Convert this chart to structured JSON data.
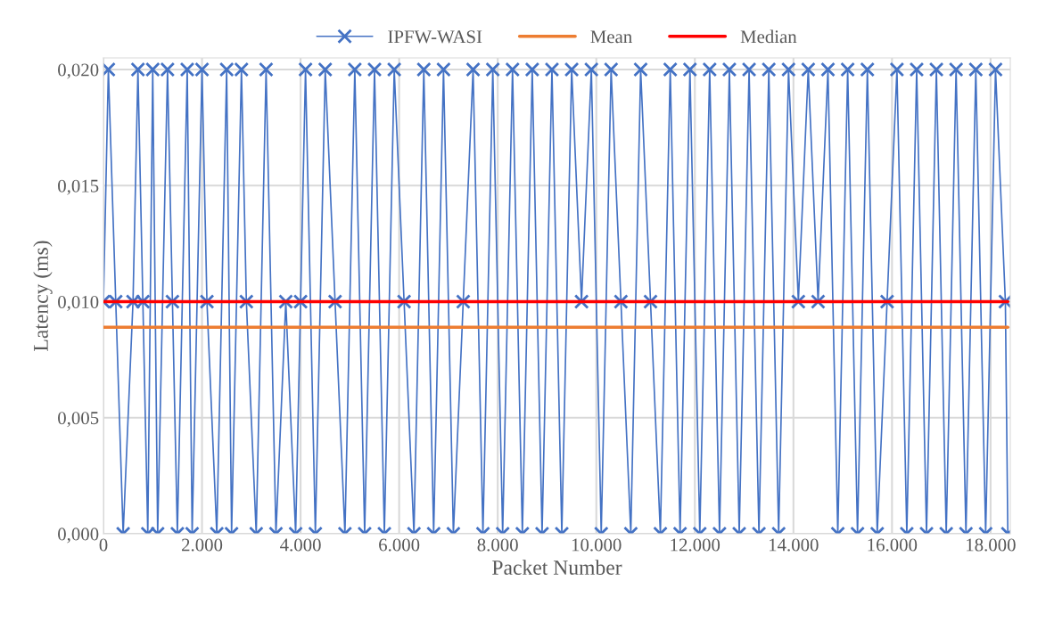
{
  "chart_data": {
    "type": "line",
    "xlabel": "Packet Number",
    "ylabel": "Latency (ms)",
    "xlim": [
      0,
      18400
    ],
    "ylim": [
      0,
      0.0205
    ],
    "xticks": [
      {
        "value": 0,
        "label": "0"
      },
      {
        "value": 2000,
        "label": "2.000"
      },
      {
        "value": 4000,
        "label": "4.000"
      },
      {
        "value": 6000,
        "label": "6.000"
      },
      {
        "value": 8000,
        "label": "8.000"
      },
      {
        "value": 10000,
        "label": "10.000"
      },
      {
        "value": 12000,
        "label": "12.000"
      },
      {
        "value": 14000,
        "label": "14.000"
      },
      {
        "value": 16000,
        "label": "16.000"
      },
      {
        "value": 18000,
        "label": "18.000"
      }
    ],
    "yticks": [
      {
        "value": 0,
        "label": "0,000"
      },
      {
        "value": 0.005,
        "label": "0,005"
      },
      {
        "value": 0.01,
        "label": "0,010"
      },
      {
        "value": 0.015,
        "label": "0,015"
      },
      {
        "value": 0.02,
        "label": "0,020"
      }
    ],
    "grid": true,
    "legend": "top",
    "series": [
      {
        "name": "IPFW-WASI",
        "color": "#4472c4",
        "marker": "cross",
        "line_style": "solid",
        "x": [
          0,
          100,
          250,
          400,
          600,
          700,
          800,
          900,
          1000,
          1100,
          1300,
          1400,
          1500,
          1700,
          1800,
          2000,
          2100,
          2300,
          2500,
          2600,
          2800,
          2900,
          3100,
          3300,
          3500,
          3700,
          3900,
          4000,
          4100,
          4300,
          4500,
          4700,
          4900,
          5100,
          5300,
          5500,
          5700,
          5900,
          6100,
          6300,
          6500,
          6700,
          6900,
          7100,
          7300,
          7500,
          7700,
          7900,
          8100,
          8300,
          8500,
          8700,
          8900,
          9100,
          9300,
          9500,
          9700,
          9900,
          10100,
          10300,
          10500,
          10700,
          10900,
          11100,
          11300,
          11500,
          11700,
          11900,
          12100,
          12300,
          12500,
          12700,
          12900,
          13100,
          13300,
          13500,
          13700,
          13900,
          14100,
          14300,
          14500,
          14700,
          14900,
          15100,
          15300,
          15500,
          15700,
          15900,
          16100,
          16300,
          16500,
          16700,
          16900,
          17100,
          17300,
          17500,
          17700,
          17900,
          18100,
          18300,
          18350
        ],
        "values": [
          0.01,
          0.02,
          0.01,
          0,
          0.01,
          0.02,
          0.01,
          0,
          0.02,
          0,
          0.02,
          0.01,
          0,
          0.02,
          0,
          0.02,
          0.01,
          0,
          0.02,
          0,
          0.02,
          0.01,
          0,
          0.02,
          0,
          0.01,
          0,
          0.01,
          0.02,
          0,
          0.02,
          0.01,
          0,
          0.02,
          0,
          0.02,
          0,
          0.02,
          0.01,
          0,
          0.02,
          0,
          0.02,
          0,
          0.01,
          0.02,
          0,
          0.02,
          0,
          0.02,
          0,
          0.02,
          0,
          0.02,
          0,
          0.02,
          0.01,
          0.02,
          0,
          0.02,
          0.01,
          0,
          0.02,
          0.01,
          0,
          0.02,
          0,
          0.02,
          0,
          0.02,
          0,
          0.02,
          0,
          0.02,
          0,
          0.02,
          0,
          0.02,
          0.01,
          0.02,
          0.01,
          0.02,
          0,
          0.02,
          0,
          0.02,
          0,
          0.01,
          0.02,
          0,
          0.02,
          0,
          0.02,
          0,
          0.02,
          0,
          0.02,
          0,
          0.02,
          0.01,
          0
        ]
      },
      {
        "name": "Mean",
        "color": "#ed7d31",
        "marker": "none",
        "line_style": "solid",
        "x": [
          0,
          18350
        ],
        "values": [
          0.0089,
          0.0089
        ]
      },
      {
        "name": "Median",
        "color": "#ff0000",
        "marker": "none",
        "line_style": "solid",
        "x": [
          0,
          18350
        ],
        "values": [
          0.01,
          0.01
        ]
      }
    ]
  }
}
